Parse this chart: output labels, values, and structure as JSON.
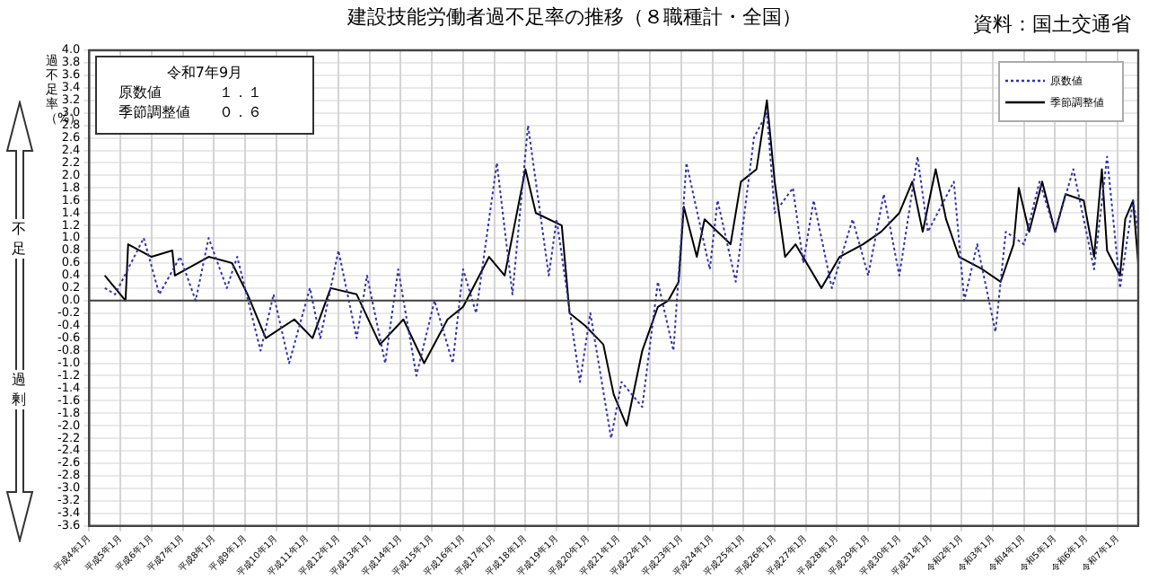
{
  "chart_data": {
    "type": "line",
    "title": "建設技能労働者過不足率の推移（８職種計・全国）",
    "ylabel": "過不足率（%）",
    "annotations": [
      "資料：国土交通省",
      "令和7年9月",
      "原数値　　　　１．１",
      "季節調整値　　０．６",
      "不足",
      "過剰"
    ],
    "xlim": [
      "1992-01",
      "2025-09"
    ],
    "xticks": [
      {
        "value": "1992-01",
        "label": "平成4年1月"
      },
      {
        "value": "1993-01",
        "label": "平成5年1月"
      },
      {
        "value": "1994-01",
        "label": "平成6年1月"
      },
      {
        "value": "1995-01",
        "label": "平成7年1月"
      },
      {
        "value": "1996-01",
        "label": "平成8年1月"
      },
      {
        "value": "1997-01",
        "label": "平成9年1月"
      },
      {
        "value": "1998-01",
        "label": "平成10年1月"
      },
      {
        "value": "1999-01",
        "label": "平成11年1月"
      },
      {
        "value": "2000-01",
        "label": "平成12年1月"
      },
      {
        "value": "2001-01",
        "label": "平成13年1月"
      },
      {
        "value": "2002-01",
        "label": "平成14年1月"
      },
      {
        "value": "2003-01",
        "label": "平成15年1月"
      },
      {
        "value": "2004-01",
        "label": "平成16年1月"
      },
      {
        "value": "2005-01",
        "label": "平成17年1月"
      },
      {
        "value": "2006-01",
        "label": "平成18年1月"
      },
      {
        "value": "2007-01",
        "label": "平成19年1月"
      },
      {
        "value": "2008-01",
        "label": "平成20年1月"
      },
      {
        "value": "2009-01",
        "label": "平成21年1月"
      },
      {
        "value": "2010-01",
        "label": "平成22年1月"
      },
      {
        "value": "2011-01",
        "label": "平成23年1月"
      },
      {
        "value": "2012-01",
        "label": "平成24年1月"
      },
      {
        "value": "2013-01",
        "label": "平成25年1月"
      },
      {
        "value": "2014-01",
        "label": "平成26年1月"
      },
      {
        "value": "2015-01",
        "label": "平成27年1月"
      },
      {
        "value": "2016-01",
        "label": "平成28年1月"
      },
      {
        "value": "2017-01",
        "label": "平成29年1月"
      },
      {
        "value": "2018-01",
        "label": "平成30年1月"
      },
      {
        "value": "2019-01",
        "label": "平成31年1月"
      },
      {
        "value": "2020-01",
        "label": "令和2年1月"
      },
      {
        "value": "2021-01",
        "label": "令和3年1月"
      },
      {
        "value": "2022-01",
        "label": "令和4年1月"
      },
      {
        "value": "2023-01",
        "label": "令和5年1月"
      },
      {
        "value": "2024-01",
        "label": "令和6年1月"
      },
      {
        "value": "2025-01",
        "label": "令和7年1月"
      }
    ],
    "ylim": [
      -3.6,
      4.0
    ],
    "yticks": [
      {
        "value": 4,
        "label": "4.0"
      },
      {
        "value": 3.8,
        "label": "3.8"
      },
      {
        "value": 3.6,
        "label": "3.6"
      },
      {
        "value": 3.4,
        "label": "3.4"
      },
      {
        "value": 3.2,
        "label": "3.2"
      },
      {
        "value": 3,
        "label": "3.0"
      },
      {
        "value": 2.8,
        "label": "2.8"
      },
      {
        "value": 2.6,
        "label": "2.6"
      },
      {
        "value": 2.4,
        "label": "2.4"
      },
      {
        "value": 2.2,
        "label": "2.2"
      },
      {
        "value": 2,
        "label": "2.0"
      },
      {
        "value": 1.8,
        "label": "1.8"
      },
      {
        "value": 1.6,
        "label": "1.6"
      },
      {
        "value": 1.4,
        "label": "1.4"
      },
      {
        "value": 1.2,
        "label": "1.2"
      },
      {
        "value": 1,
        "label": "1.0"
      },
      {
        "value": 0.8,
        "label": "0.8"
      },
      {
        "value": 0.6,
        "label": "0.6"
      },
      {
        "value": 0.4,
        "label": "0.4"
      },
      {
        "value": 0.2,
        "label": "0.2"
      },
      {
        "value": 0,
        "label": "0.0"
      },
      {
        "value": -0.2,
        "label": "-0.2"
      },
      {
        "value": -0.4,
        "label": "-0.4"
      },
      {
        "value": -0.6,
        "label": "-0.6"
      },
      {
        "value": -0.8,
        "label": "-0.8"
      },
      {
        "value": -1,
        "label": "-1.0"
      },
      {
        "value": -1.2,
        "label": "-1.2"
      },
      {
        "value": -1.4,
        "label": "-1.4"
      },
      {
        "value": -1.6,
        "label": "-1.6"
      },
      {
        "value": -1.8,
        "label": "-1.8"
      },
      {
        "value": -2,
        "label": "-2.0"
      },
      {
        "value": -2.2,
        "label": "-2.2"
      },
      {
        "value": -2.4,
        "label": "-2.4"
      },
      {
        "value": -2.6,
        "label": "-2.6"
      },
      {
        "value": -2.8,
        "label": "-2.8"
      },
      {
        "value": -3,
        "label": "-3.0"
      },
      {
        "value": -3.2,
        "label": "-3.2"
      },
      {
        "value": -3.4,
        "label": "-3.4"
      },
      {
        "value": -3.6,
        "label": "-3.6"
      }
    ],
    "grid": true,
    "legend": "top right",
    "ref_lines": [
      {
        "axis": "y",
        "value": 0,
        "color": "#404040"
      }
    ],
    "series": [
      {
        "name": "原数値",
        "color": "#3333aa",
        "line_style": "dotted",
        "x": [
          "1992-07",
          "1992-11",
          "1993-10",
          "1994-04",
          "1994-12",
          "1995-06",
          "1995-11",
          "1996-06",
          "1996-10",
          "1997-07",
          "1997-12",
          "1998-06",
          "1999-02",
          "1999-06",
          "2000-01",
          "2000-08",
          "2000-12",
          "2001-07",
          "2001-12",
          "2002-07",
          "2003-02",
          "2003-09",
          "2004-01",
          "2004-06",
          "2005-02",
          "2005-08",
          "2006-02",
          "2006-10",
          "2007-01",
          "2007-10",
          "2008-02",
          "2008-10",
          "2009-02",
          "2009-10",
          "2010-04",
          "2010-10",
          "2011-03",
          "2011-12",
          "2012-03",
          "2012-10",
          "2013-05",
          "2013-10",
          "2014-01",
          "2014-08",
          "2014-12",
          "2015-04",
          "2015-11",
          "2016-07",
          "2017-01",
          "2017-07",
          "2018-01",
          "2018-08",
          "2018-12",
          "2019-10",
          "2020-02",
          "2020-07",
          "2021-02",
          "2021-06",
          "2022-01",
          "2022-07",
          "2023-01",
          "2023-08",
          "2024-04",
          "2024-09",
          "2025-02",
          "2025-07",
          "2025-09"
        ],
        "values": [
          0.2,
          0.1,
          1.0,
          0.1,
          0.7,
          0.0,
          1.0,
          0.2,
          0.7,
          -0.8,
          0.1,
          -1.0,
          0.2,
          -0.6,
          0.8,
          -0.6,
          0.4,
          -1.0,
          0.5,
          -1.2,
          0.0,
          -1.0,
          0.5,
          -0.2,
          2.2,
          0.1,
          2.8,
          0.4,
          1.3,
          -1.3,
          -0.2,
          -2.2,
          -1.3,
          -1.7,
          0.3,
          -0.8,
          2.2,
          0.5,
          1.6,
          0.3,
          2.6,
          3.0,
          1.4,
          1.8,
          0.6,
          1.6,
          0.2,
          1.3,
          0.4,
          1.7,
          0.4,
          2.3,
          1.1,
          1.9,
          0.0,
          0.9,
          -0.5,
          1.1,
          0.9,
          1.9,
          1.1,
          2.1,
          0.5,
          2.3,
          0.2,
          1.6,
          1.1
        ]
      },
      {
        "name": "季節調整値",
        "color": "#000000",
        "line_style": "solid",
        "x": [
          "1992-07",
          "1993-03",
          "1993-04",
          "1994-01",
          "1994-09",
          "1994-10",
          "1995-11",
          "1996-08",
          "1997-02",
          "1997-09",
          "1998-08",
          "1999-03",
          "1999-10",
          "2000-08",
          "2001-05",
          "2002-02",
          "2002-10",
          "2003-07",
          "2004-01",
          "2004-11",
          "2005-05",
          "2006-01",
          "2006-05",
          "2007-03",
          "2007-06",
          "2007-12",
          "2008-07",
          "2008-11",
          "2009-04",
          "2009-10",
          "2010-04",
          "2010-08",
          "2010-12",
          "2011-02",
          "2011-07",
          "2011-10",
          "2012-08",
          "2012-12",
          "2013-06",
          "2013-10",
          "2014-01",
          "2014-05",
          "2014-09",
          "2015-07",
          "2016-02",
          "2016-11",
          "2017-06",
          "2018-01",
          "2018-06",
          "2018-10",
          "2019-03",
          "2019-07",
          "2019-12",
          "2020-09",
          "2021-04",
          "2021-09",
          "2021-11",
          "2022-03",
          "2022-08",
          "2023-01",
          "2023-05",
          "2023-12",
          "2024-04",
          "2024-07",
          "2024-09",
          "2025-02",
          "2025-04",
          "2025-07",
          "2025-09"
        ],
        "values": [
          0.4,
          0.0,
          0.9,
          0.7,
          0.8,
          0.4,
          0.7,
          0.6,
          0.1,
          -0.6,
          -0.3,
          -0.6,
          0.2,
          0.1,
          -0.7,
          -0.3,
          -1.0,
          -0.3,
          -0.1,
          0.7,
          0.4,
          2.1,
          1.4,
          1.2,
          -0.2,
          -0.4,
          -0.7,
          -1.5,
          -2.0,
          -0.8,
          -0.1,
          0.0,
          0.3,
          1.5,
          0.7,
          1.3,
          0.9,
          1.9,
          2.1,
          3.2,
          1.9,
          0.7,
          0.9,
          0.2,
          0.7,
          0.9,
          1.1,
          1.4,
          1.9,
          1.1,
          2.1,
          1.3,
          0.7,
          0.5,
          0.3,
          0.9,
          1.8,
          1.1,
          1.9,
          1.1,
          1.7,
          1.6,
          0.7,
          2.1,
          0.8,
          0.4,
          1.3,
          1.6,
          0.6
        ]
      }
    ]
  }
}
